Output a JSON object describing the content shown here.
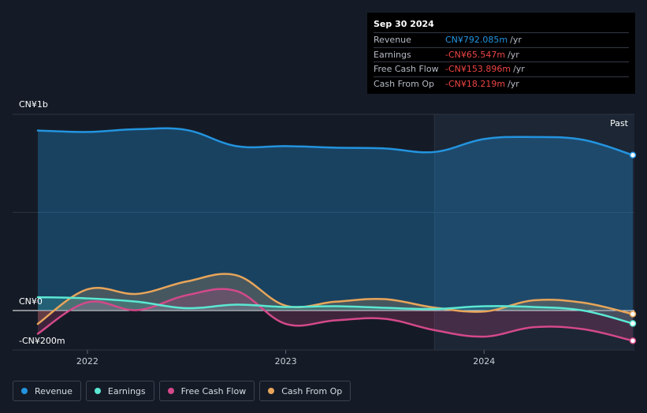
{
  "colors": {
    "revenue": "#2394df",
    "earnings": "#5be8d4",
    "free_cash_flow": "#d4498b",
    "cash_from_op": "#e8a55a"
  },
  "tooltip": {
    "date": "Sep 30 2024",
    "rows": [
      {
        "label": "Revenue",
        "value": "CN¥792.085m",
        "unit": "/yr",
        "color": "#2394df"
      },
      {
        "label": "Earnings",
        "value": "-CN¥65.547m",
        "unit": "/yr",
        "color": "#ee4444"
      },
      {
        "label": "Free Cash Flow",
        "value": "-CN¥153.896m",
        "unit": "/yr",
        "color": "#ee4444"
      },
      {
        "label": "Cash From Op",
        "value": "-CN¥18.219m",
        "unit": "/yr",
        "color": "#ee4444"
      }
    ]
  },
  "legend": [
    {
      "label": "Revenue",
      "color": "#2394df"
    },
    {
      "label": "Earnings",
      "color": "#5be8d4"
    },
    {
      "label": "Free Cash Flow",
      "color": "#d4498b"
    },
    {
      "label": "Cash From Op",
      "color": "#e8a55a"
    }
  ],
  "chart_data": {
    "type": "area",
    "y_unit": "CN¥ millions",
    "ylim": [
      -200,
      1000
    ],
    "y_tick_labels": [
      {
        "value": 1000,
        "label": "CN¥1b"
      },
      {
        "value": 0,
        "label": "CN¥0"
      },
      {
        "value": -200,
        "label": "-CN¥200m"
      }
    ],
    "xlim": [
      2021.75,
      2024.75
    ],
    "x_ticks": [
      {
        "value": 2022,
        "label": "2022"
      },
      {
        "value": 2023,
        "label": "2023"
      },
      {
        "value": 2024,
        "label": "2024"
      }
    ],
    "past_start": 2023.75,
    "past_label": "Past",
    "grid": true,
    "series": [
      {
        "name": "Revenue",
        "key": "revenue",
        "x": [
          2021.75,
          2022.0,
          2022.25,
          2022.5,
          2022.75,
          2023.0,
          2023.25,
          2023.5,
          2023.75,
          2024.0,
          2024.25,
          2024.5,
          2024.75
        ],
        "y": [
          917,
          910,
          924,
          920,
          838,
          838,
          830,
          826,
          808,
          874,
          884,
          870,
          792
        ]
      },
      {
        "name": "Earnings",
        "key": "earnings",
        "x": [
          2021.75,
          2022.0,
          2022.25,
          2022.5,
          2022.75,
          2023.0,
          2023.25,
          2023.5,
          2023.75,
          2024.0,
          2024.25,
          2024.5,
          2024.75
        ],
        "y": [
          68,
          62,
          45,
          12,
          30,
          18,
          22,
          14,
          8,
          22,
          18,
          0,
          -66
        ]
      },
      {
        "name": "Free Cash Flow",
        "key": "free_cash_flow",
        "x": [
          2021.75,
          2022.0,
          2022.25,
          2022.5,
          2022.75,
          2023.0,
          2023.25,
          2023.5,
          2023.75,
          2024.0,
          2024.25,
          2024.5,
          2024.75
        ],
        "y": [
          -118,
          42,
          2,
          78,
          100,
          -68,
          -50,
          -42,
          -100,
          -133,
          -85,
          -95,
          -154
        ]
      },
      {
        "name": "Cash From Op",
        "key": "cash_from_op",
        "x": [
          2021.75,
          2022.0,
          2022.25,
          2022.5,
          2022.75,
          2023.0,
          2023.25,
          2023.5,
          2023.75,
          2024.0,
          2024.25,
          2024.5,
          2024.75
        ],
        "y": [
          -68,
          108,
          85,
          148,
          180,
          25,
          45,
          58,
          15,
          -5,
          52,
          40,
          -18
        ]
      }
    ]
  }
}
